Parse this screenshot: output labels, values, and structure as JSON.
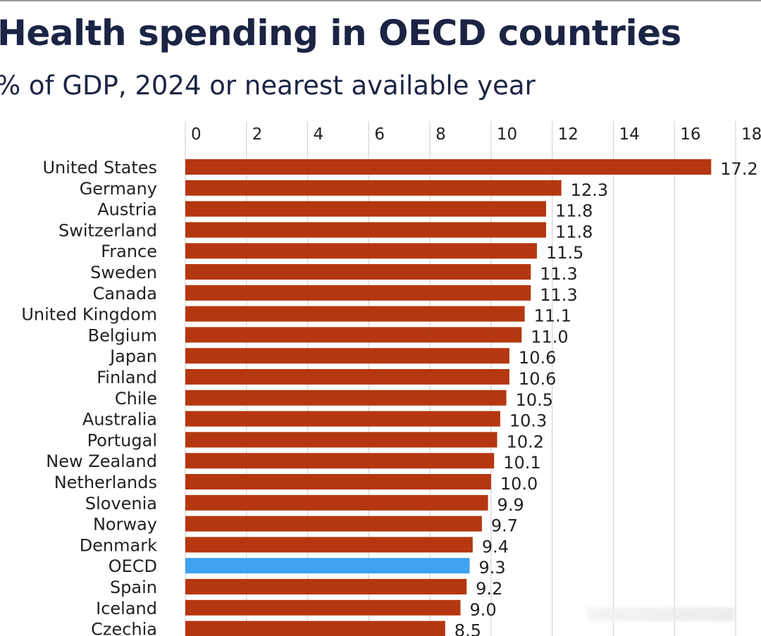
{
  "chart_data": {
    "type": "bar",
    "orientation": "horizontal",
    "title": "Health spending in OECD countries",
    "subtitle": "% of GDP, 2024 or nearest available year",
    "categories": [
      "United States",
      "Germany",
      "Austria",
      "Switzerland",
      "France",
      "Sweden",
      "Canada",
      "United Kingdom",
      "Belgium",
      "Japan",
      "Finland",
      "Chile",
      "Australia",
      "Portugal",
      "New Zealand",
      "Netherlands",
      "Slovenia",
      "Norway",
      "Denmark",
      "OECD",
      "Spain",
      "Iceland",
      "Czechia"
    ],
    "values": [
      17.2,
      12.3,
      11.8,
      11.8,
      11.5,
      11.3,
      11.3,
      11.1,
      11.0,
      10.6,
      10.6,
      10.5,
      10.3,
      10.2,
      10.1,
      10.0,
      9.9,
      9.7,
      9.4,
      9.3,
      9.2,
      9.0,
      8.5
    ],
    "value_labels": [
      "17.2",
      "12.3",
      "11.8",
      "11.8",
      "11.5",
      "11.3",
      "11.3",
      "11.1",
      "11.0",
      "10.6",
      "10.6",
      "10.5",
      "10.3",
      "10.2",
      "10.1",
      "10.0",
      "9.9",
      "9.7",
      "9.4",
      "9.3",
      "9.2",
      "9.0",
      "8.5"
    ],
    "xticks": [
      "0",
      "2",
      "4",
      "6",
      "8",
      "10",
      "12",
      "14",
      "16",
      "18"
    ],
    "xlim": [
      0,
      18
    ],
    "xaxis_position": "top",
    "grid": true,
    "colors": {
      "bar": "#b5370f",
      "highlight": "#3fa2f2",
      "highlight_category": "OECD",
      "title": "#1b2444"
    }
  }
}
